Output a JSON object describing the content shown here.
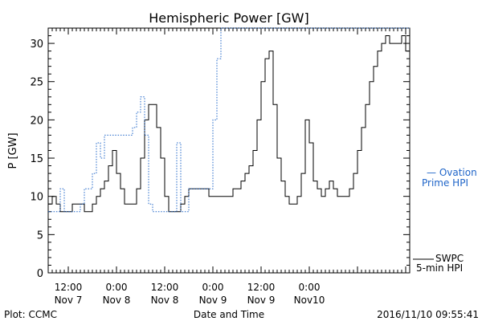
{
  "chart_data": {
    "type": "line",
    "title": "Hemispheric Power [GW]",
    "xlabel": "Date and Time",
    "ylabel": "P [GW]",
    "ylim": [
      0,
      32
    ],
    "yticks": [
      0,
      5,
      10,
      15,
      20,
      25,
      30
    ],
    "xlim_hours": [
      0,
      90
    ],
    "xtick_labels": [
      {
        "h": 5,
        "line1": "12:00",
        "line2": "Nov 7"
      },
      {
        "h": 17,
        "line1": "0:00",
        "line2": "Nov 8"
      },
      {
        "h": 29,
        "line1": "12:00",
        "line2": "Nov 8"
      },
      {
        "h": 41,
        "line1": "0:00",
        "line2": "Nov 9"
      },
      {
        "h": 53,
        "line1": "12:00",
        "line2": "Nov 9"
      },
      {
        "h": 65,
        "line1": "0:00",
        "line2": "Nov10"
      }
    ],
    "grid": false,
    "series": [
      {
        "name": "SWPC 5-min HPI",
        "style": "solid",
        "color": "#000000",
        "x": [
          0,
          1,
          2,
          3,
          4,
          5,
          6,
          7,
          8,
          9,
          10,
          11,
          12,
          13,
          14,
          15,
          16,
          17,
          18,
          19,
          20,
          21,
          22,
          23,
          24,
          25,
          26,
          27,
          28,
          29,
          30,
          31,
          32,
          33,
          34,
          35,
          36,
          37,
          38,
          39,
          40,
          41,
          42,
          43,
          44,
          45,
          46,
          47,
          48,
          49,
          50,
          51,
          52,
          53,
          54,
          55,
          56,
          57,
          58,
          59,
          60,
          61,
          62,
          63,
          64,
          65,
          66,
          67,
          68,
          69,
          70,
          71,
          72,
          73,
          74,
          75,
          76,
          77,
          78,
          79,
          80,
          81,
          82,
          83,
          84,
          85,
          86,
          87,
          88,
          89,
          90
        ],
        "values": [
          9,
          10,
          9,
          8,
          8,
          8,
          9,
          9,
          9,
          8,
          8,
          9,
          10,
          11,
          12,
          14,
          16,
          13,
          11,
          9,
          9,
          9,
          11,
          15,
          20,
          22,
          22,
          19,
          15,
          10,
          8,
          8,
          8,
          9,
          10,
          11,
          11,
          11,
          11,
          11,
          10,
          10,
          10,
          10,
          10,
          10,
          11,
          11,
          12,
          13,
          14,
          16,
          20,
          25,
          28,
          29,
          22,
          15,
          12,
          10,
          9,
          9,
          10,
          13,
          20,
          17,
          12,
          11,
          10,
          11,
          12,
          11,
          10,
          10,
          10,
          11,
          13,
          16,
          19,
          22,
          25,
          27,
          29,
          30,
          31,
          30,
          30,
          30,
          31,
          29,
          27
        ]
      },
      {
        "name": "Ovation Prime HPI",
        "style": "dotted",
        "color": "#1e64c8",
        "x": [
          0,
          1,
          2,
          3,
          4,
          5,
          6,
          7,
          8,
          9,
          10,
          11,
          12,
          13,
          14,
          15,
          16,
          17,
          18,
          19,
          20,
          21,
          22,
          23,
          24,
          25,
          26,
          27,
          28,
          29,
          30,
          31,
          32,
          33,
          34,
          35,
          36,
          37,
          38,
          39,
          40,
          41,
          42,
          43,
          44,
          45,
          46,
          47,
          48,
          49,
          50,
          51,
          52,
          53,
          54,
          55,
          56,
          57,
          58,
          59,
          60,
          61,
          62,
          63,
          64,
          65,
          66,
          67,
          68,
          69,
          70,
          71,
          72,
          73,
          74,
          75,
          76,
          77,
          78,
          79,
          80,
          81,
          82,
          83,
          84,
          85,
          86,
          87,
          88,
          89,
          90
        ],
        "values": [
          8,
          8,
          8,
          11,
          8,
          8,
          8,
          8,
          9,
          11,
          11,
          13,
          17,
          15,
          18,
          18,
          18,
          18,
          18,
          18,
          18,
          19,
          21,
          23,
          18,
          9,
          8,
          8,
          8,
          8,
          8,
          8,
          17,
          8,
          8,
          11,
          11,
          11,
          11,
          11,
          11,
          20,
          28,
          32,
          32,
          32,
          32,
          32,
          32,
          32,
          32,
          32,
          32,
          32,
          32,
          32,
          32,
          32,
          32,
          32,
          32,
          32,
          32,
          32,
          32,
          32,
          32,
          32,
          32,
          32,
          32,
          32,
          32,
          32,
          32,
          32,
          32,
          32,
          32,
          32,
          32,
          32,
          32,
          32,
          32,
          32,
          32,
          32,
          32,
          32,
          32
        ]
      }
    ],
    "legend": [
      {
        "line1": "— Ovation",
        "line2": "Prime HPI",
        "color": "#1e64c8",
        "position": "right"
      },
      {
        "line1": "SWPC",
        "line2": "5-min HPI",
        "color": "#000000",
        "position": "right"
      }
    ],
    "footer_left": "Plot: CCMC",
    "footer_right": "2016/11/10 09:55:41"
  }
}
